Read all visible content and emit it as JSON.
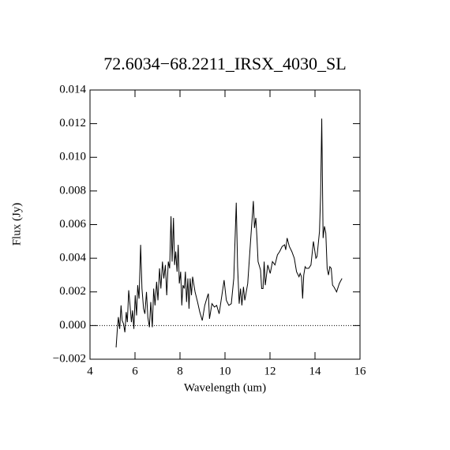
{
  "chart_data": {
    "type": "line",
    "title": "72.6034−68.2211_IRSX_4030_SL",
    "x_label": "Wavelength (um)",
    "y_label": "Flux (Jy)",
    "xlim": [
      4,
      16
    ],
    "xticks": [
      4,
      6,
      8,
      10,
      12,
      14,
      16
    ],
    "ylim": [
      -0.002,
      0.014
    ],
    "yticks": [
      {
        "value": -0.002,
        "label": "−0.002"
      },
      {
        "value": 0,
        "label": "0.000"
      },
      0.002,
      0.004,
      0.006,
      0.008,
      {
        "value": 0.01,
        "label": "0.010"
      },
      0.012,
      0.014
    ],
    "hline": 0,
    "x": [
      5.16,
      5.21,
      5.26,
      5.32,
      5.38,
      5.43,
      5.49,
      5.55,
      5.61,
      5.66,
      5.72,
      5.78,
      5.84,
      5.89,
      5.95,
      6.01,
      6.07,
      6.12,
      6.18,
      6.25,
      6.31,
      6.38,
      6.44,
      6.51,
      6.57,
      6.64,
      6.7,
      6.77,
      6.83,
      6.89,
      6.96,
      7.02,
      7.09,
      7.15,
      7.22,
      7.28,
      7.35,
      7.41,
      7.48,
      7.54,
      7.6,
      7.65,
      7.71,
      7.76,
      7.81,
      7.87,
      7.92,
      7.97,
      8.03,
      8.08,
      8.13,
      8.19,
      8.24,
      8.29,
      8.35,
      8.4,
      8.45,
      8.51,
      8.56,
      8.67,
      8.78,
      8.88,
      8.99,
      9.1,
      9.21,
      9.26,
      9.31,
      9.42,
      9.53,
      9.63,
      9.74,
      9.85,
      9.96,
      10.06,
      10.17,
      10.28,
      10.39,
      10.5,
      10.56,
      10.63,
      10.69,
      10.75,
      10.82,
      10.88,
      11.01,
      11.13,
      11.26,
      11.31,
      11.37,
      11.42,
      11.47,
      11.58,
      11.63,
      11.69,
      11.74,
      11.79,
      11.9,
      12.01,
      12.11,
      12.22,
      12.33,
      12.43,
      12.54,
      12.65,
      12.7,
      12.76,
      12.86,
      12.97,
      13.08,
      13.18,
      13.29,
      13.34,
      13.4,
      13.45,
      13.5,
      13.56,
      13.61,
      13.72,
      13.82,
      13.93,
      14.04,
      14.09,
      14.2,
      14.25,
      14.3,
      14.36,
      14.42,
      14.48,
      14.54,
      14.6,
      14.66,
      14.72,
      14.78,
      14.84,
      14.96,
      15.08,
      15.2
    ],
    "series": [
      {
        "color": "#000000",
        "values": [
          -0.0013,
          -0.0003,
          0.0005,
          -0.0002,
          0.0012,
          0.0003,
          0.0001,
          -0.0004,
          0.0008,
          0.0002,
          0.0021,
          0.0012,
          0.0002,
          0.0009,
          -0.0002,
          0.0018,
          0.0006,
          0.0024,
          0.0016,
          0.0048,
          0.0022,
          0.001,
          0.0007,
          0.002,
          0.0005,
          -0.0001,
          0.0014,
          -0.0001,
          0.0022,
          0.0012,
          0.0026,
          0.0015,
          0.0034,
          0.0022,
          0.0038,
          0.0028,
          0.0036,
          0.0018,
          0.0038,
          0.0034,
          0.0065,
          0.0038,
          0.0064,
          0.0036,
          0.0044,
          0.0032,
          0.0048,
          0.0025,
          0.0032,
          0.0012,
          0.0024,
          0.0022,
          0.0032,
          0.0014,
          0.0028,
          0.001,
          0.0028,
          0.0018,
          0.0029,
          0.002,
          0.0014,
          0.0008,
          0.0003,
          0.0012,
          0.0017,
          0.0019,
          0.0004,
          0.0013,
          0.0011,
          0.0012,
          0.0007,
          0.0017,
          0.0027,
          0.0015,
          0.0012,
          0.0013,
          0.0028,
          0.0073,
          0.0035,
          0.0013,
          0.0022,
          0.0012,
          0.0023,
          0.0015,
          0.0025,
          0.0049,
          0.0074,
          0.0058,
          0.0064,
          0.0052,
          0.0038,
          0.0033,
          0.0022,
          0.0022,
          0.0038,
          0.0024,
          0.0036,
          0.0031,
          0.0038,
          0.0036,
          0.0042,
          0.0044,
          0.0047,
          0.0048,
          0.0045,
          0.0052,
          0.0047,
          0.0044,
          0.004,
          0.0032,
          0.0029,
          0.0031,
          0.0029,
          0.0016,
          0.003,
          0.0035,
          0.0034,
          0.0034,
          0.0036,
          0.005,
          0.004,
          0.0041,
          0.0056,
          0.0078,
          0.0123,
          0.0052,
          0.0059,
          0.0055,
          0.0034,
          0.003,
          0.0035,
          0.0034,
          0.0024,
          0.0023,
          0.002,
          0.0025,
          0.0028
        ]
      }
    ]
  }
}
